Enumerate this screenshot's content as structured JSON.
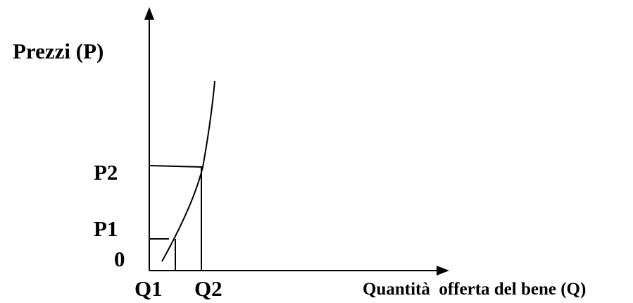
{
  "diagram": {
    "y_axis_label": "Prezzi (P)",
    "x_axis_label": "Quantità  offerta del bene (Q)",
    "y_ticks": {
      "p2": "P2",
      "p1": "P1",
      "origin": "0"
    },
    "x_ticks": {
      "q1": "Q1",
      "q2": "Q2"
    },
    "colors": {
      "ink": "#000000",
      "background": "#ffffff"
    }
  }
}
